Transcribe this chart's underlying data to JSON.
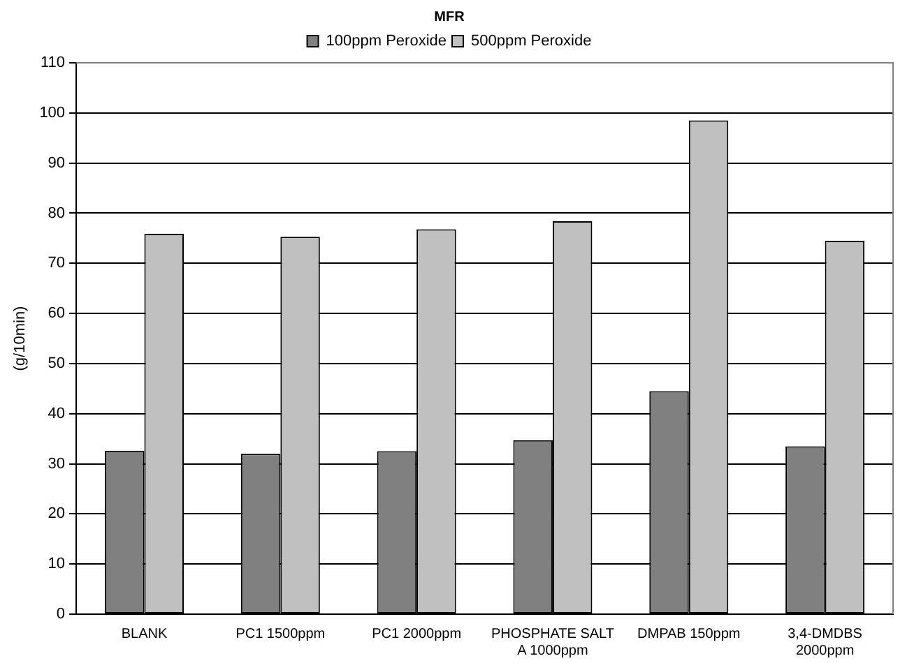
{
  "chart_data": {
    "type": "bar",
    "title": "MFR",
    "ylabel": "(g/10min)",
    "categories": [
      "BLANK",
      "PC1 1500ppm",
      "PC1 2000ppm",
      "PHOSPHATE SALT A 1000ppm",
      "DMPAB 150ppm",
      "3,4-DMDBS 2000ppm"
    ],
    "series": [
      {
        "name": "100ppm Peroxide",
        "color": "#808080",
        "values": [
          32.6,
          32.0,
          32.5,
          34.7,
          44.5,
          33.5
        ]
      },
      {
        "name": "500ppm Peroxide",
        "color": "#c0c0c0",
        "values": [
          75.9,
          75.3,
          76.8,
          78.4,
          98.5,
          74.5
        ]
      }
    ],
    "ylim": [
      0,
      110
    ],
    "yticks": [
      0,
      10,
      20,
      30,
      40,
      50,
      60,
      70,
      80,
      90,
      100,
      110
    ],
    "grid": "y",
    "legend": "top"
  }
}
